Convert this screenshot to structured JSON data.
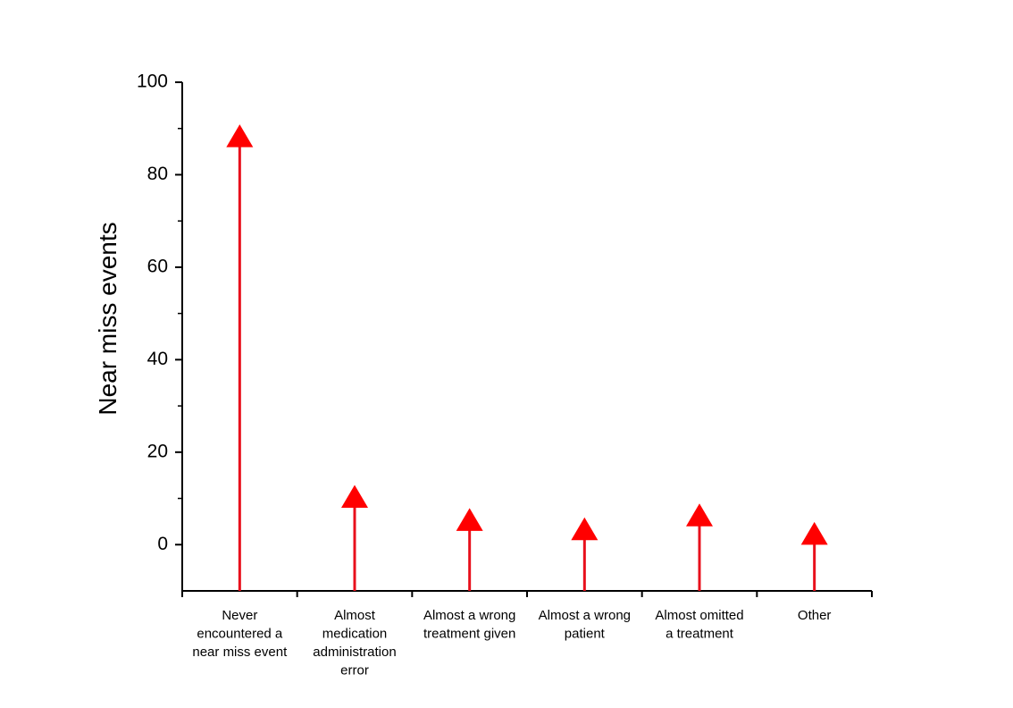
{
  "chart_data": {
    "type": "bar",
    "mark": "stem-with-triangle-marker",
    "title": "",
    "xlabel": "",
    "ylabel": "Near miss events",
    "ylim": [
      -10,
      100
    ],
    "yticks": [
      0,
      20,
      40,
      60,
      80,
      100
    ],
    "y_minor_ticks": [
      10,
      30,
      50,
      70,
      90
    ],
    "grid": false,
    "legend": "none",
    "stem_color": "#e8101c",
    "marker_color": "#ff0000",
    "categories": [
      [
        "Never",
        "encountered a",
        "near miss event"
      ],
      [
        "Almost",
        "medication",
        "administration",
        "error"
      ],
      [
        "Almost a wrong",
        "treatment given"
      ],
      [
        "Almost a wrong",
        "patient"
      ],
      [
        "Almost omitted",
        "a treatment"
      ],
      [
        "Other"
      ]
    ],
    "values": [
      88,
      10,
      5,
      3,
      6,
      2
    ]
  }
}
